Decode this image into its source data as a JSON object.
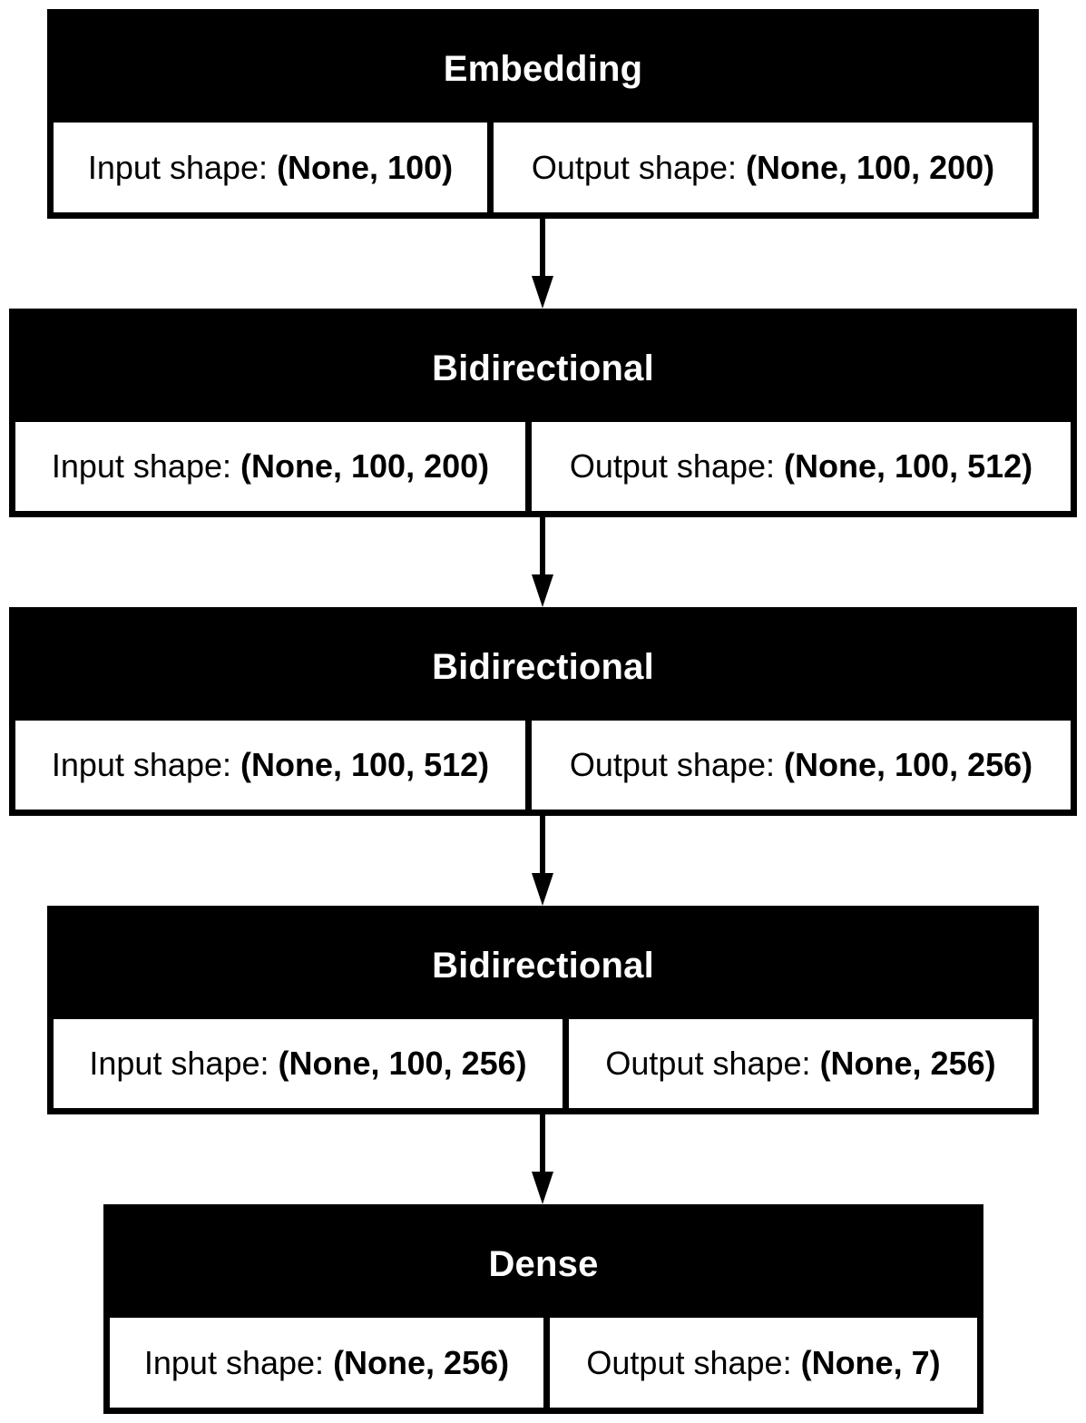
{
  "labels": {
    "input_prefix": "Input shape: ",
    "output_prefix": "Output shape: "
  },
  "layers": [
    {
      "name": "Embedding",
      "input_shape": "(None, 100)",
      "output_shape": "(None, 100, 200)"
    },
    {
      "name": "Bidirectional",
      "input_shape": "(None, 100, 200)",
      "output_shape": "(None, 100, 512)"
    },
    {
      "name": "Bidirectional",
      "input_shape": "(None, 100, 512)",
      "output_shape": "(None, 100, 256)"
    },
    {
      "name": "Bidirectional",
      "input_shape": "(None, 100, 256)",
      "output_shape": "(None, 256)"
    },
    {
      "name": "Dense",
      "input_shape": "(None, 256)",
      "output_shape": "(None, 7)"
    }
  ],
  "colors": {
    "box": "#000000",
    "title_text": "#ffffff",
    "cell_background": "#ffffff"
  }
}
